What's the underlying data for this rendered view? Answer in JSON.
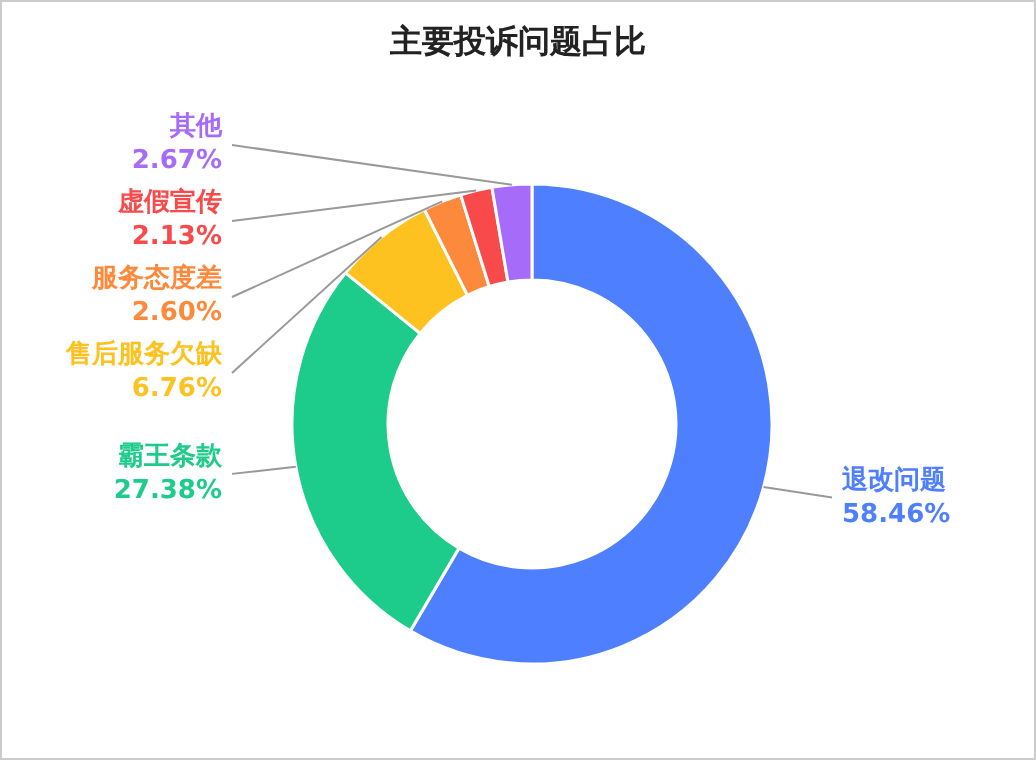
{
  "chart_data": {
    "type": "donut",
    "title": "主要投诉问题占比",
    "categories": [
      "退改问题",
      "霸王条款",
      "售后服务欠缺",
      "服务态度差",
      "虚假宣传",
      "其他"
    ],
    "values": [
      58.46,
      27.38,
      6.76,
      2.6,
      2.13,
      2.67
    ],
    "value_labels": [
      "58.46%",
      "27.38%",
      "6.76%",
      "2.60%",
      "2.13%",
      "2.67%"
    ],
    "colors": [
      "#4e7ffe",
      "#1dcc8a",
      "#fdc120",
      "#fd8a3c",
      "#f84a4a",
      "#a66cf9"
    ]
  }
}
